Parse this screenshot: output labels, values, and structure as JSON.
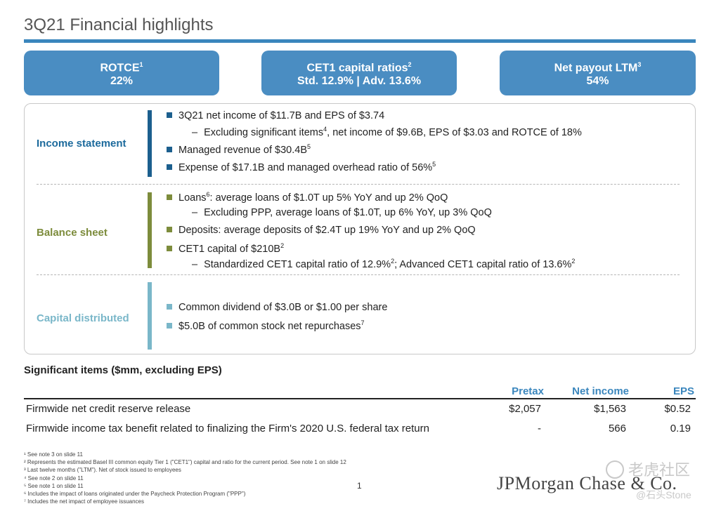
{
  "title": "3Q21 Financial highlights",
  "kpis": [
    {
      "label": "ROTCE",
      "sup": "1",
      "value": "22%"
    },
    {
      "label": "CET1 capital ratios",
      "sup": "2",
      "value": "Std. 12.9% | Adv. 13.6%"
    },
    {
      "label": "Net payout LTM",
      "sup": "3",
      "value": "54%"
    }
  ],
  "sections": {
    "income": {
      "label": "Income statement",
      "b1": "3Q21 net income of $11.7B and EPS of $3.74",
      "b1a_pre": "Excluding significant items",
      "b1a_sup": "4",
      "b1a_post": ", net income of $9.6B, EPS of $3.03 and ROTCE of 18%",
      "b2": "Managed revenue of $30.4B",
      "b2_sup": "5",
      "b3": "Expense of $17.1B and managed overhead ratio of 56%",
      "b3_sup": "5"
    },
    "balance": {
      "label": "Balance sheet",
      "b1_pre": "Loans",
      "b1_sup": "6",
      "b1_post": ": average loans of $1.0T up 5% YoY and up 2% QoQ",
      "b1a": "Excluding PPP, average loans of $1.0T, up 6% YoY, up 3% QoQ",
      "b2": "Deposits: average deposits of $2.4T up 19% YoY and up 2% QoQ",
      "b3": "CET1 capital of $210B",
      "b3_sup": "2",
      "b3a_pre": "Standardized CET1 capital ratio of 12.9%",
      "b3a_sup1": "2",
      "b3a_mid": "; Advanced CET1 capital ratio of 13.6%",
      "b3a_sup2": "2"
    },
    "capital": {
      "label": "Capital distributed",
      "b1": "Common dividend of $3.0B or $1.00 per share",
      "b2": "$5.0B of common stock net repurchases",
      "b2_sup": "7"
    }
  },
  "significant": {
    "title": "Significant items ($mm, excluding EPS)",
    "headers": {
      "pretax": "Pretax",
      "net": "Net income",
      "eps": "EPS"
    },
    "rows": [
      {
        "label": "Firmwide net credit reserve release",
        "pretax": "$2,057",
        "net": "$1,563",
        "eps": "$0.52"
      },
      {
        "label": "Firmwide income tax benefit related to finalizing the Firm's 2020 U.S. federal tax return",
        "pretax": "-",
        "net": "566",
        "eps": "0.19"
      }
    ]
  },
  "footnotes": [
    "¹ See note 3 on slide 11",
    "² Represents the estimated Basel III common equity Tier 1 (\"CET1\") capital and ratio for the current period. See note 1 on slide 12",
    "³ Last twelve months (\"LTM\"). Net of stock issued to employees",
    "⁴ See note 2 on slide 11",
    "⁵ See note 1 on slide 11",
    "⁶ Includes the impact of loans originated under the Paycheck Protection Program (\"PPP\")",
    "⁷ Includes the net impact of employee issuances"
  ],
  "page_number": "1",
  "logo": "JPMorgan Chase & Co.",
  "watermark": {
    "line1": "老虎社区",
    "line2": "@石头Stone"
  },
  "colors": {
    "accent": "#3a86bd",
    "income": "#1c5f8e",
    "balance": "#7d8c3c",
    "capital": "#7ab7c9"
  }
}
